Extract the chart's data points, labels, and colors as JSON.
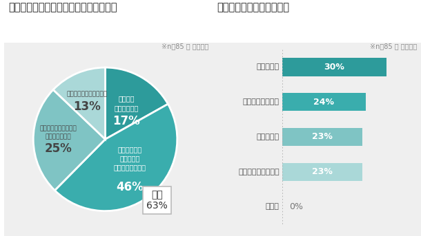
{
  "pie_title": "課題（業務への影響）に対する対応状況",
  "pie_note": "※n＝85 ／ 複数回答",
  "pie_labels_inner": [
    "全く対策\nできていない",
    "対策の一部は\n終えたが、\n多くが残っている"
  ],
  "pie_labels_outer": [
    "対策はほぼ終えたが、\n一部残っている",
    "必要な対策は全て終えた"
  ],
  "pie_values": [
    17,
    46,
    25,
    13
  ],
  "pie_colors": [
    "#2d9b9b",
    "#3aadad",
    "#7fc4c4",
    "#aad8d8"
  ],
  "pie_pct_labels": [
    "17%",
    "46%",
    "25%",
    "13%"
  ],
  "pie_total_label": "合計\n63%",
  "bar_title": "対応実施にあたっての課題",
  "bar_note": "※n＝85 ／ 単一回答",
  "bar_categories": [
    "人員の不足",
    "法的な知見の不足",
    "資金の不足",
    "技術的な知見の不足",
    "その他"
  ],
  "bar_values": [
    30,
    24,
    23,
    23,
    0
  ],
  "bar_colors": [
    "#2d9b9b",
    "#3aadad",
    "#7fc4c4",
    "#aad8d8",
    "#cccccc"
  ],
  "bar_pct_labels": [
    "30%",
    "24%",
    "23%",
    "23%",
    "0%"
  ],
  "background_color": "#efefef",
  "white": "#ffffff",
  "title_color": "#222222",
  "note_color": "#888888",
  "label_color_dark": "#555555",
  "title_fontsize": 10.5,
  "note_fontsize": 7,
  "bar_label_fontsize": 8,
  "bar_pct_fontsize": 9,
  "pie_inner_label_fontsize": 7.5,
  "pie_pct_fontsize": 11
}
